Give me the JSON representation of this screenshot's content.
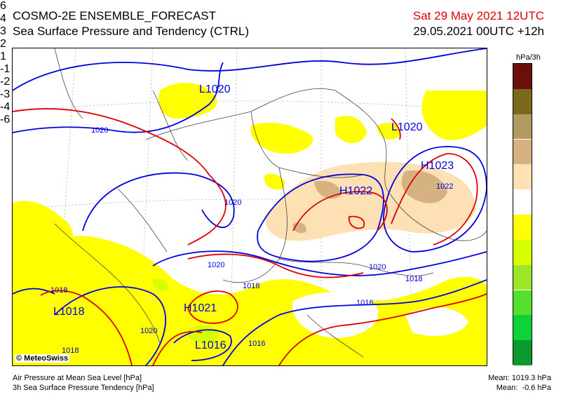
{
  "header": {
    "title_line1": "COSMO-2E ENSEMBLE_FORECAST",
    "title_line2": "Sea Surface Pressure and Tendency (CTRL)",
    "valid_time": "Sat 29 May 2021 12UTC",
    "run_time": "29.05.2021 00UTC +12h"
  },
  "legend": {
    "unit": "hPa/3h",
    "colors": [
      "#6b0f0a",
      "#7a6a1c",
      "#b09a60",
      "#d6b282",
      "#fde0b4",
      "#ffffff",
      "#ffff00",
      "#d7ff00",
      "#9ce62a",
      "#55e02e",
      "#0fd13a",
      "#0a9a30"
    ],
    "ticks": [
      "6",
      "4",
      "3",
      "2",
      "1",
      "-1",
      "-2",
      "-3",
      "-4",
      "-6"
    ]
  },
  "map": {
    "labels": {
      "l1020_top": "L1020",
      "l1020_ne": "L1020",
      "l1018": "L1018",
      "l1016": "L1016",
      "h1023": "H1023",
      "h1022": "H1022",
      "h1021": "H1021",
      "c1020_a": "1020",
      "c1020_b": "1020",
      "c1020_c": "1020",
      "c1020_d": "1020",
      "c1022": "1022",
      "c1020_e": "1020",
      "c1018_a": "1018",
      "c1018_b": "1018",
      "c1018_c": "1018",
      "c1016_a": "1016",
      "c1016_b": "1016",
      "c1018_d": "1018",
      "c1020_f": "1020"
    }
  },
  "copyright": "© MeteoSwiss",
  "footer": {
    "line1": "Air Pressure at Mean Sea Level [hPa]",
    "line2": "3h Sea Surface Pressure Tendency [hPa]",
    "mean_pressure": "Mean: 1019.3 hPa",
    "mean_tendency": "Mean:  -0.6 hPa"
  }
}
